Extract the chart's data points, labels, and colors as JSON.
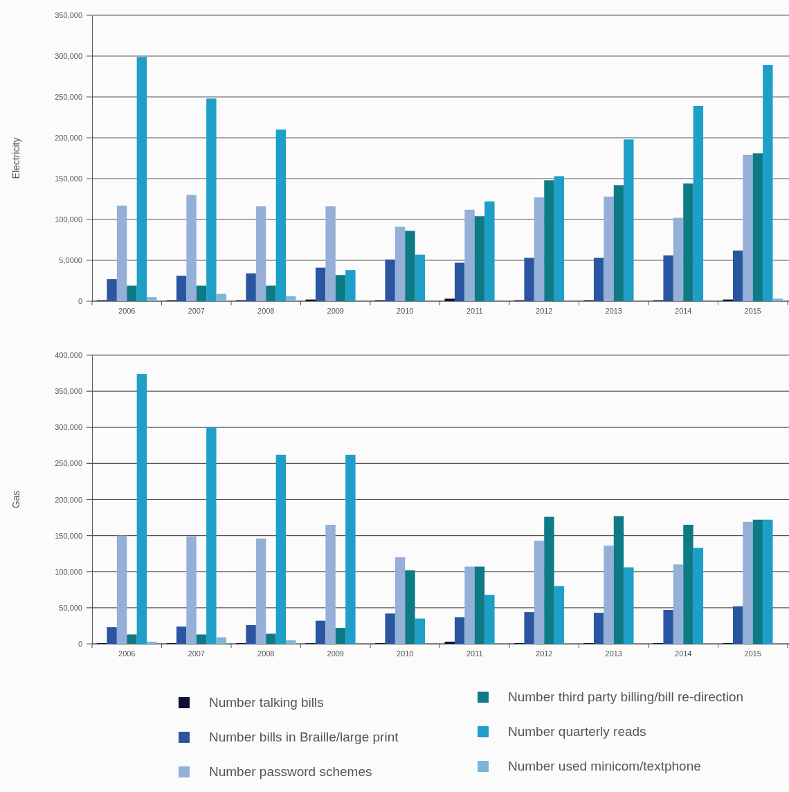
{
  "chart_data": [
    {
      "type": "bar",
      "ylabel": "Electricity",
      "categories": [
        "2006",
        "2007",
        "2008",
        "2009",
        "2010",
        "2011",
        "2012",
        "2013",
        "2014",
        "2015"
      ],
      "series": [
        {
          "color": "#0d1033",
          "values": [
            1000,
            1000,
            1000,
            2000,
            1000,
            3000,
            1000,
            1000,
            1000,
            2000
          ]
        },
        {
          "color": "#2a55a0",
          "values": [
            27000,
            31000,
            34000,
            41000,
            51000,
            47000,
            53000,
            53000,
            56000,
            62000
          ]
        },
        {
          "color": "#94afd8",
          "values": [
            117000,
            130000,
            116000,
            116000,
            91000,
            112000,
            127000,
            128000,
            102000,
            179000
          ]
        },
        {
          "color": "#0e7a86",
          "values": [
            19000,
            19000,
            19000,
            32000,
            86000,
            104000,
            148000,
            142000,
            144000,
            181000
          ]
        },
        {
          "color": "#1d9fc8",
          "values": [
            299000,
            248000,
            210000,
            38000,
            57000,
            122000,
            153000,
            198000,
            239000,
            289000
          ]
        },
        {
          "color": "#7ab6d6",
          "values": [
            5000,
            9000,
            6000,
            0,
            0,
            0,
            0,
            0,
            0,
            3000
          ]
        }
      ],
      "ylim": [
        0,
        350000
      ],
      "yticks": [
        0,
        {
          "value": 50000,
          "label": "5,0000"
        },
        {
          "value": 100000,
          "label": "100,000"
        },
        {
          "value": 150000,
          "label": "150,000"
        },
        {
          "value": 200000,
          "label": "200,000"
        },
        {
          "value": 250000,
          "label": "250,000"
        },
        {
          "value": 300000,
          "label": "300,000"
        },
        {
          "value": 350000,
          "label": "350,000"
        }
      ],
      "grid": "y",
      "legend": false
    },
    {
      "type": "bar",
      "ylabel": "Gas",
      "categories": [
        "2006",
        "2007",
        "2008",
        "2009",
        "2010",
        "2011",
        "2012",
        "2013",
        "2014",
        "2015"
      ],
      "series": [
        {
          "name": "Number talking bills",
          "color": "#0d1033",
          "values": [
            1000,
            1000,
            1000,
            1000,
            1000,
            3000,
            1000,
            1000,
            1000,
            1000
          ]
        },
        {
          "name": "Number bills in Braille/large print",
          "color": "#2a55a0",
          "values": [
            23000,
            24000,
            26000,
            32000,
            42000,
            37000,
            44000,
            43000,
            47000,
            52000
          ]
        },
        {
          "name": "Number password schemes",
          "color": "#94afd8",
          "values": [
            150000,
            149000,
            146000,
            165000,
            120000,
            107000,
            143000,
            136000,
            110000,
            169000
          ]
        },
        {
          "name": "Number third party billing/bill re-direction",
          "color": "#0e7a86",
          "values": [
            13000,
            13000,
            14000,
            22000,
            102000,
            107000,
            176000,
            177000,
            165000,
            172000
          ]
        },
        {
          "name": "Number quarterly reads",
          "color": "#1d9fc8",
          "values": [
            374000,
            300000,
            262000,
            262000,
            35000,
            68000,
            80000,
            106000,
            133000,
            172000
          ]
        },
        {
          "name": "Number used minicom/textphone",
          "color": "#7ab6d6",
          "values": [
            3000,
            9000,
            5000,
            0,
            0,
            0,
            0,
            0,
            0,
            0
          ]
        }
      ],
      "ylim": [
        0,
        400000
      ],
      "yticks": [
        {
          "value": 0,
          "label": "0"
        },
        {
          "value": 50000,
          "label": "50,000"
        },
        {
          "value": 100000,
          "label": "100,000"
        },
        {
          "value": 150000,
          "label": "150,000"
        },
        {
          "value": 200000,
          "label": "200,000"
        },
        {
          "value": 250000,
          "label": "250,000"
        },
        {
          "value": 300000,
          "label": "300,000"
        },
        {
          "value": 350000,
          "label": "350,000"
        },
        {
          "value": 400000,
          "label": "400,000"
        }
      ],
      "grid": "y",
      "legend": "bottom"
    }
  ]
}
